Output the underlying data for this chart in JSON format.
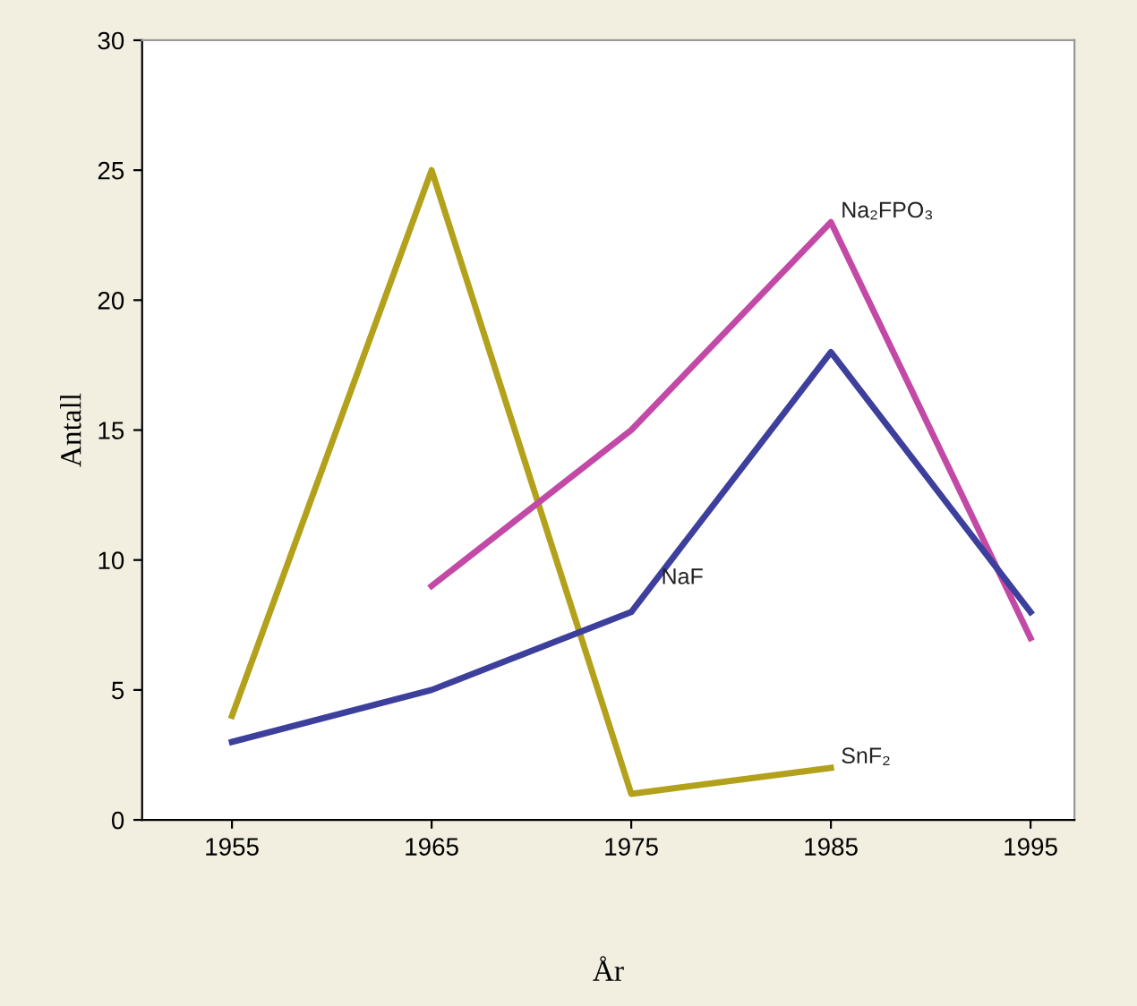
{
  "chart_data": {
    "type": "line",
    "xlabel": "År",
    "ylabel": "Antall",
    "categories": [
      "1955",
      "1965",
      "1975",
      "1985",
      "1995"
    ],
    "ylim": [
      0,
      30
    ],
    "yticks": [
      0,
      5,
      10,
      15,
      20,
      25,
      30
    ],
    "grid": false,
    "legend": false,
    "marker": "none",
    "line_style": "solid",
    "series": [
      {
        "name": "SnF₂",
        "color": "#b3a11c",
        "values": [
          4,
          25,
          1,
          2,
          null
        ]
      },
      {
        "name": "Na₂FPO₃",
        "color": "#c24aa6",
        "values": [
          null,
          9,
          15,
          23,
          7
        ]
      },
      {
        "name": "NaF",
        "color": "#3c3f9c",
        "values": [
          3,
          5,
          8,
          18,
          8
        ]
      }
    ]
  }
}
